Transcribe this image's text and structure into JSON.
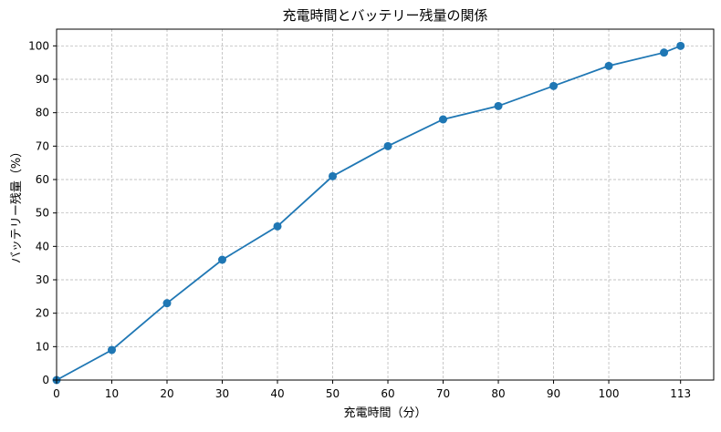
{
  "chart_data": {
    "type": "line",
    "title": "充電時間とバッテリー残量の関係",
    "xlabel": "充電時間（分）",
    "ylabel": "バッテリー残量（%）",
    "x": [
      0,
      10,
      20,
      30,
      40,
      50,
      60,
      70,
      80,
      90,
      100,
      110,
      113
    ],
    "y": [
      0,
      9,
      23,
      36,
      46,
      61,
      70,
      78,
      82,
      88,
      94,
      98,
      100
    ],
    "xlim": [
      0,
      119
    ],
    "ylim": [
      0,
      105
    ],
    "xticks": [
      0,
      10,
      20,
      30,
      40,
      50,
      60,
      70,
      80,
      90,
      100,
      113
    ],
    "yticks": [
      0,
      10,
      20,
      30,
      40,
      50,
      60,
      70,
      80,
      90,
      100
    ],
    "grid": true,
    "line_color": "#1f77b4",
    "grid_color": "#b0b0b0"
  }
}
